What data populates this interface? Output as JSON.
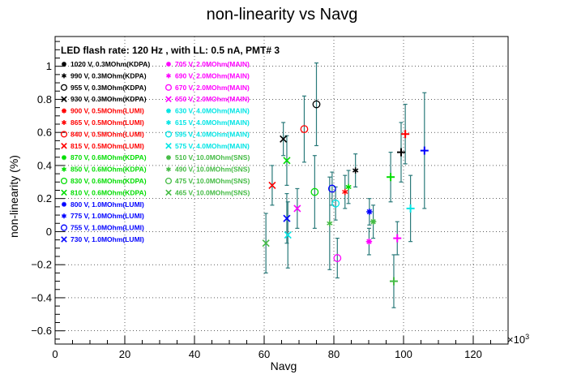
{
  "chart_data": {
    "type": "scatter",
    "title": "non-linearity vs Navg",
    "subtitle": "LED flash rate: 120 Hz , with LL: 0.5 nA, PMT# 3",
    "xlabel": "Navg",
    "ylabel": "non-linearity (%)",
    "x_exponent_label": "×10",
    "x_exponent_power": "3",
    "xlim": [
      0,
      130
    ],
    "ylim": [
      -0.68,
      1.18
    ],
    "x_ticks": [
      0,
      20,
      40,
      60,
      80,
      100,
      120
    ],
    "x_tick_labels": [
      "0",
      "20",
      "40",
      "60",
      "80",
      "100",
      "120"
    ],
    "y_ticks": [
      -0.6,
      -0.4,
      -0.2,
      0,
      0.2,
      0.4,
      0.6,
      0.8,
      1
    ],
    "y_tick_labels": [
      "−0.6",
      "−0.4",
      "−0.2",
      "0",
      "0.2",
      "0.4",
      "0.6",
      "0.8",
      "1"
    ],
    "grid": true,
    "legend_columns": [
      [
        {
          "marker": "star",
          "color": "#000000",
          "label": "1020 V, 0.3MOhm(KDPA)"
        },
        {
          "marker": "asterisk",
          "color": "#000000",
          "label": "990 V, 0.3MOhm(KDPA)"
        },
        {
          "marker": "circle",
          "color": "#000000",
          "label": "955 V, 0.3MOhm(KDPA)"
        },
        {
          "marker": "cross",
          "color": "#000000",
          "label": "930 V, 0.3MOhm(KDPA)"
        },
        {
          "marker": "star",
          "color": "#ff0000",
          "label": "900 V, 0.5MOhm(LUMI)"
        },
        {
          "marker": "asterisk",
          "color": "#ff0000",
          "label": "865 V, 0.5MOhm(LUMI)"
        },
        {
          "marker": "circle",
          "color": "#ff0000",
          "label": "840 V, 0.5MOhm(LUMI)"
        },
        {
          "marker": "cross",
          "color": "#ff0000",
          "label": "815 V, 0.5MOhm(LUMI)"
        },
        {
          "marker": "star",
          "color": "#00dd00",
          "label": "870 V, 0.6MOhm(KDPA)"
        },
        {
          "marker": "asterisk",
          "color": "#00dd00",
          "label": "850 V, 0.6MOhm(KDPA)"
        },
        {
          "marker": "circle",
          "color": "#00dd00",
          "label": "830 V, 0.6MOhm(KDPA)"
        },
        {
          "marker": "cross",
          "color": "#00dd00",
          "label": "810 V, 0.6MOhm(KDPA)"
        },
        {
          "marker": "star",
          "color": "#0000ff",
          "label": "800 V, 1.0MOhm(LUMI)"
        },
        {
          "marker": "asterisk",
          "color": "#0000ff",
          "label": "775 V, 1.0MOhm(LUMI)"
        },
        {
          "marker": "circle",
          "color": "#0000ff",
          "label": "755 V, 1.0MOhm(LUMI)"
        },
        {
          "marker": "cross",
          "color": "#0000ff",
          "label": "730 V, 1.0MOhm(LUMI)"
        }
      ],
      [
        {
          "marker": "star",
          "color": "#ff00ff",
          "label": "705 V, 2.0MOhm(MAIN)"
        },
        {
          "marker": "asterisk",
          "color": "#ff00ff",
          "label": "690 V, 2.0MOhm(MAIN)"
        },
        {
          "marker": "circle",
          "color": "#ff00ff",
          "label": "670 V, 2.0MOhm(MAIN)"
        },
        {
          "marker": "cross",
          "color": "#ff00ff",
          "label": "650 V, 2.0MOhm(MAIN)"
        },
        {
          "marker": "star",
          "color": "#00e5e5",
          "label": "630 V, 4.0MOhm(MAIN)"
        },
        {
          "marker": "asterisk",
          "color": "#00e5e5",
          "label": "615 V, 4.0MOhm(MAIN)"
        },
        {
          "marker": "circle",
          "color": "#00e5e5",
          "label": "595 V, 4.0MOhm(MAIN)"
        },
        {
          "marker": "cross",
          "color": "#00e5e5",
          "label": "575 V, 4.0MOhm(MAIN)"
        },
        {
          "marker": "star",
          "color": "#44bb44",
          "label": "510 V, 10.0MOhm(SNS)"
        },
        {
          "marker": "asterisk",
          "color": "#44bb44",
          "label": "490 V, 10.0MOhm(SNS)"
        },
        {
          "marker": "circle",
          "color": "#44bb44",
          "label": "475 V, 10.0MOhm(SNS)"
        },
        {
          "marker": "cross",
          "color": "#44bb44",
          "label": "465 V, 10.0MOhm(SNS)"
        }
      ]
    ],
    "error_bar_color": "#2a7a7a",
    "points": [
      {
        "x": 106,
        "y": 0.49,
        "err": 0.35,
        "marker": "plus",
        "color": "#0000ff"
      },
      {
        "x": 99.3,
        "y": 0.48,
        "err": 0.18,
        "marker": "plus",
        "color": "#000000"
      },
      {
        "x": 100.5,
        "y": 0.59,
        "err": 0.18,
        "marker": "plus",
        "color": "#ff0000"
      },
      {
        "x": 96.3,
        "y": 0.33,
        "err": 0.15,
        "marker": "plus",
        "color": "#00dd00"
      },
      {
        "x": 102,
        "y": 0.14,
        "err": 0.2,
        "marker": "plus",
        "color": "#00e5e5"
      },
      {
        "x": 98.2,
        "y": -0.04,
        "err": 0.1,
        "marker": "plus",
        "color": "#ff00ff"
      },
      {
        "x": 97.2,
        "y": -0.3,
        "err": 0.16,
        "marker": "plus",
        "color": "#44bb44"
      },
      {
        "x": 90.2,
        "y": 0.12,
        "err": 0.08,
        "marker": "star",
        "color": "#0000ff"
      },
      {
        "x": 90.1,
        "y": -0.06,
        "err": 0.08,
        "marker": "star",
        "color": "#ff00ff"
      },
      {
        "x": 91.3,
        "y": 0.06,
        "err": 0.1,
        "marker": "star",
        "color": "#44bb44"
      },
      {
        "x": 86.2,
        "y": 0.37,
        "err": 0.1,
        "marker": "asterisk",
        "color": "#000000"
      },
      {
        "x": 84.2,
        "y": 0.27,
        "err": 0.1,
        "marker": "asterisk",
        "color": "#00dd00"
      },
      {
        "x": 83.2,
        "y": 0.24,
        "err": 0.1,
        "marker": "asterisk",
        "color": "#ff0000"
      },
      {
        "x": 79.5,
        "y": 0.26,
        "err": 0.1,
        "marker": "circle",
        "color": "#0000ff"
      },
      {
        "x": 80.5,
        "y": 0.17,
        "err": 0.1,
        "marker": "circle",
        "color": "#00e5e5"
      },
      {
        "x": 81,
        "y": -0.16,
        "err": 0.12,
        "marker": "circle",
        "color": "#ff00ff"
      },
      {
        "x": 75,
        "y": 0.77,
        "err": 0.25,
        "marker": "circle",
        "color": "#000000"
      },
      {
        "x": 71.5,
        "y": 0.62,
        "err": 0.2,
        "marker": "circle",
        "color": "#ff0000"
      },
      {
        "x": 74.5,
        "y": 0.24,
        "err": 0.22,
        "marker": "circle",
        "color": "#00dd00"
      },
      {
        "x": 78.8,
        "y": 0.05,
        "err": 0.28,
        "marker": "asterisk",
        "color": "#44bb44"
      },
      {
        "x": 65.5,
        "y": 0.56,
        "err": 0.1,
        "marker": "cross",
        "color": "#000000"
      },
      {
        "x": 66.5,
        "y": 0.43,
        "err": 0.15,
        "marker": "cross",
        "color": "#00dd00"
      },
      {
        "x": 62.3,
        "y": 0.28,
        "err": 0.12,
        "marker": "cross",
        "color": "#ff0000"
      },
      {
        "x": 69.5,
        "y": 0.14,
        "err": 0.12,
        "marker": "cross",
        "color": "#ff00ff"
      },
      {
        "x": 66.5,
        "y": 0.08,
        "err": 0.15,
        "marker": "cross",
        "color": "#0000ff"
      },
      {
        "x": 66.8,
        "y": -0.02,
        "err": 0.2,
        "marker": "cross",
        "color": "#00e5e5"
      },
      {
        "x": 60.5,
        "y": -0.07,
        "err": 0.18,
        "marker": "cross",
        "color": "#44bb44"
      }
    ]
  }
}
